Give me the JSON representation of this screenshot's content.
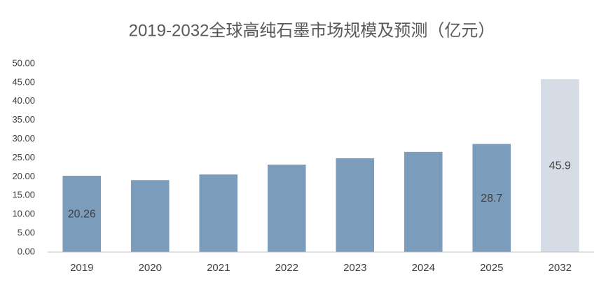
{
  "chart_data": {
    "type": "bar",
    "title": "2019-2032全球高纯石墨市场规模及预测（亿元）",
    "categories": [
      "2019",
      "2020",
      "2021",
      "2022",
      "2023",
      "2024",
      "2025",
      "2032"
    ],
    "values": [
      20.26,
      19.1,
      20.6,
      23.2,
      24.9,
      26.6,
      28.7,
      45.9
    ],
    "value_labels": [
      "20.26",
      null,
      null,
      null,
      null,
      null,
      "28.7",
      "45.9"
    ],
    "colors": [
      "#7b9cba",
      "#7b9cba",
      "#7b9cba",
      "#7b9cba",
      "#7b9cba",
      "#7b9cba",
      "#7b9cba",
      "#d6dce6"
    ],
    "ylim": [
      0,
      50
    ],
    "yticks": [
      {
        "value": 0,
        "label": "0.00"
      },
      {
        "value": 5,
        "label": "5.00"
      },
      {
        "value": 10,
        "label": "10.00"
      },
      {
        "value": 15,
        "label": "15.00"
      },
      {
        "value": 20,
        "label": "20.00"
      },
      {
        "value": 25,
        "label": "25.00"
      },
      {
        "value": 30,
        "label": "30.00"
      },
      {
        "value": 35,
        "label": "35.00"
      },
      {
        "value": 40,
        "label": "40.00"
      },
      {
        "value": 45,
        "label": "45.00"
      },
      {
        "value": 50,
        "label": "50.00"
      }
    ],
    "grid": false
  }
}
